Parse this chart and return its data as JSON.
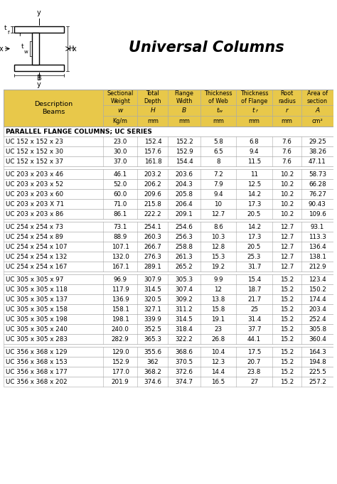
{
  "title": "Universal Columns",
  "header_bg": "#E8C84A",
  "border_color": "#aaaaaa",
  "col_headers_line1": [
    "Sectional\nWeight",
    "Total\nDepth",
    "Flange\nWidth",
    "Thickness\nof Web",
    "Thickness\nof Flange",
    "Root\nradius",
    "Area of\nsection"
  ],
  "col_headers_sym": [
    "w",
    "H",
    "B",
    "t_w",
    "t_f",
    "r",
    "A"
  ],
  "col_headers_unit": [
    "Kg/m",
    "mm",
    "mm",
    "mm",
    "mm",
    "mm",
    "cm²"
  ],
  "desc_header": "Description\nBeams",
  "section_label": "PARALLEL FLANGE COLUMNS; UC SERIES",
  "groups": [
    {
      "rows": [
        [
          "UC 152 x 152 x 23",
          "23.0",
          "152.4",
          "152.2",
          "5.8",
          "6.8",
          "7.6",
          "29.25"
        ],
        [
          "UC 152 x 152 x 30",
          "30.0",
          "157.6",
          "152.9",
          "6.5",
          "9.4",
          "7.6",
          "38.26"
        ],
        [
          "UC 152 x 152 x 37",
          "37.0",
          "161.8",
          "154.4",
          "8",
          "11.5",
          "7.6",
          "47.11"
        ]
      ]
    },
    {
      "rows": [
        [
          "UC 203 x 203 x 46",
          "46.1",
          "203.2",
          "203.6",
          "7.2",
          "11",
          "10.2",
          "58.73"
        ],
        [
          "UC 203 x 203 x 52",
          "52.0",
          "206.2",
          "204.3",
          "7.9",
          "12.5",
          "10.2",
          "66.28"
        ],
        [
          "UC 203 x 203 x 60",
          "60.0",
          "209.6",
          "205.8",
          "9.4",
          "14.2",
          "10.2",
          "76.27"
        ],
        [
          "UC 203 x 203 X 71",
          "71.0",
          "215.8",
          "206.4",
          "10",
          "17.3",
          "10.2",
          "90.43"
        ],
        [
          "UC 203 x 203 x 86",
          "86.1",
          "222.2",
          "209.1",
          "12.7",
          "20.5",
          "10.2",
          "109.6"
        ]
      ]
    },
    {
      "rows": [
        [
          "UC 254 x 254 x 73",
          "73.1",
          "254.1",
          "254.6",
          "8.6",
          "14.2",
          "12.7",
          "93.1"
        ],
        [
          "UC 254 x 254 x 89",
          "88.9",
          "260.3",
          "256.3",
          "10.3",
          "17.3",
          "12.7",
          "113.3"
        ],
        [
          "UC 254 x 254 x 107",
          "107.1",
          "266.7",
          "258.8",
          "12.8",
          "20.5",
          "12.7",
          "136.4"
        ],
        [
          "UC 254 x 254 x 132",
          "132.0",
          "276.3",
          "261.3",
          "15.3",
          "25.3",
          "12.7",
          "138.1"
        ],
        [
          "UC 254 x 254 x 167",
          "167.1",
          "289.1",
          "265.2",
          "19.2",
          "31.7",
          "12.7",
          "212.9"
        ]
      ]
    },
    {
      "rows": [
        [
          "UC 305 x 305 x 97",
          "96.9",
          "307.9",
          "305.3",
          "9.9",
          "15.4",
          "15.2",
          "123.4"
        ],
        [
          "UC 305 x 305 x 118",
          "117.9",
          "314.5",
          "307.4",
          "12",
          "18.7",
          "15.2",
          "150.2"
        ],
        [
          "UC 305 x 305 x 137",
          "136.9",
          "320.5",
          "309.2",
          "13.8",
          "21.7",
          "15.2",
          "174.4"
        ],
        [
          "UC 305 x 305 x 158",
          "158.1",
          "327.1",
          "311.2",
          "15.8",
          "25",
          "15.2",
          "203.4"
        ],
        [
          "UC 305 x 305 x 198",
          "198.1",
          "339.9",
          "314.5",
          "19.1",
          "31.4",
          "15.2",
          "252.4"
        ],
        [
          "UC 305 x 305 x 240",
          "240.0",
          "352.5",
          "318.4",
          "23",
          "37.7",
          "15.2",
          "305.8"
        ],
        [
          "UC 305 x 305 x 283",
          "282.9",
          "365.3",
          "322.2",
          "26.8",
          "44.1",
          "15.2",
          "360.4"
        ]
      ]
    },
    {
      "rows": [
        [
          "UC 356 x 368 x 129",
          "129.0",
          "355.6",
          "368.6",
          "10.4",
          "17.5",
          "15.2",
          "164.3"
        ],
        [
          "UC 356 x 368 x 153",
          "152.9",
          "362",
          "370.5",
          "12.3",
          "20.7",
          "15.2",
          "194.8"
        ],
        [
          "UC 356 x 368 x 177",
          "177.0",
          "368.2",
          "372.6",
          "14.4",
          "23.8",
          "15.2",
          "225.5"
        ],
        [
          "UC 356 x 368 x 202",
          "201.9",
          "374.6",
          "374.7",
          "16.5",
          "27",
          "15.2",
          "257.2"
        ]
      ]
    }
  ]
}
